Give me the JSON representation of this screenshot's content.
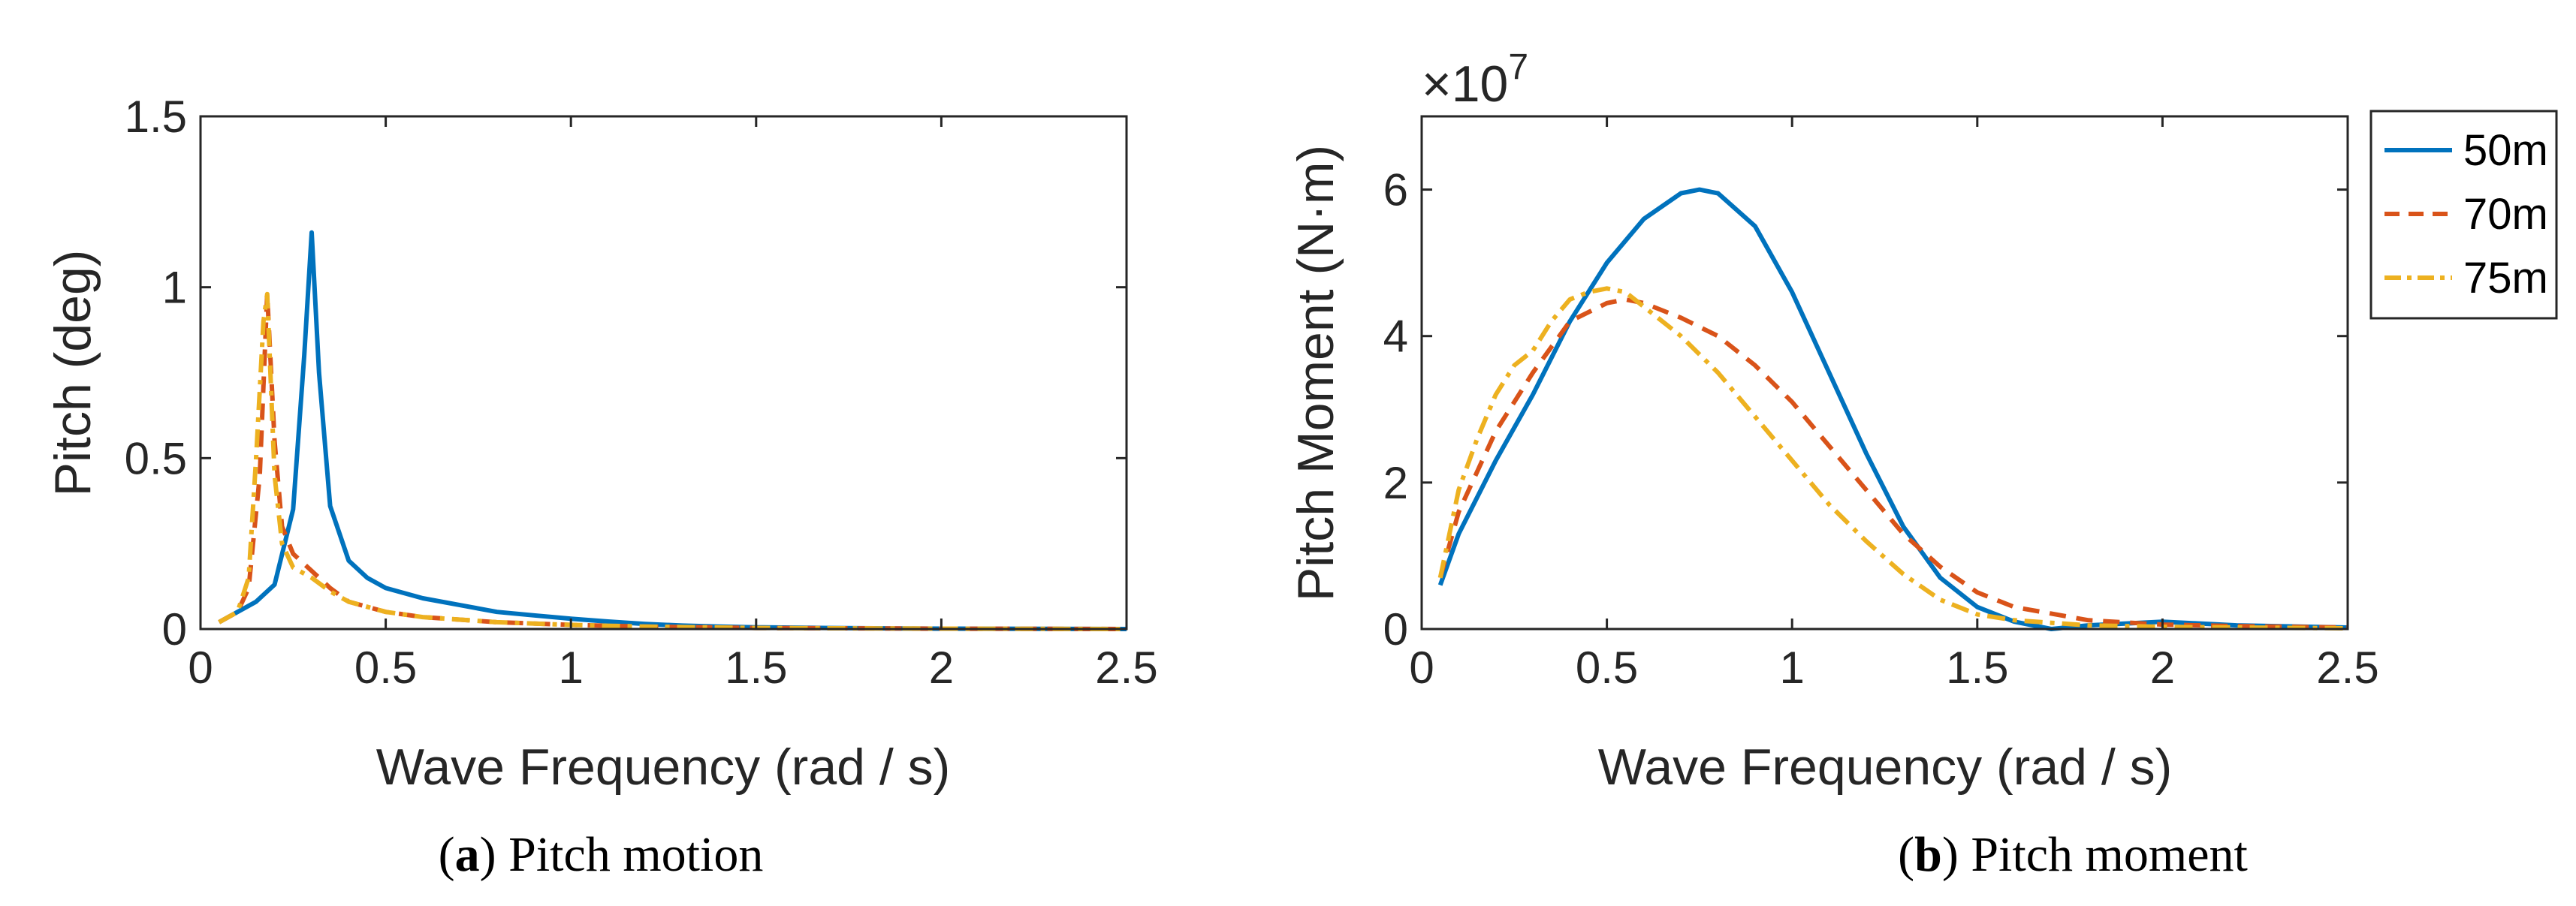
{
  "chart_data": [
    {
      "type": "line",
      "caption": {
        "letter": "a",
        "text": "Pitch motion"
      },
      "xlabel": "Wave Frequency (rad / s)",
      "ylabel": "Pitch  (deg)",
      "xlim": [
        0,
        2.5
      ],
      "ylim": [
        0,
        1.5
      ],
      "xticks": [
        "0",
        "0.5",
        "1",
        "1.5",
        "2",
        "2.5"
      ],
      "yticks": [
        "0",
        "0.5",
        "1",
        "1.5"
      ],
      "series": [
        {
          "name": "50m",
          "color": "#0072BD",
          "dash": "solid",
          "x": [
            0.05,
            0.1,
            0.15,
            0.2,
            0.25,
            0.28,
            0.3,
            0.32,
            0.35,
            0.4,
            0.45,
            0.5,
            0.6,
            0.7,
            0.8,
            0.9,
            1.0,
            1.1,
            1.2,
            1.3,
            1.4,
            1.5,
            1.7,
            2.0,
            2.5
          ],
          "y": [
            0.02,
            0.05,
            0.08,
            0.13,
            0.35,
            0.8,
            1.16,
            0.75,
            0.36,
            0.2,
            0.15,
            0.12,
            0.09,
            0.07,
            0.05,
            0.04,
            0.03,
            0.022,
            0.015,
            0.01,
            0.007,
            0.005,
            0.003,
            0.001,
            0.0
          ]
        },
        {
          "name": "70m",
          "color": "#D95319",
          "dash": "dashed",
          "x": [
            0.05,
            0.1,
            0.13,
            0.16,
            0.18,
            0.2,
            0.22,
            0.25,
            0.3,
            0.35,
            0.4,
            0.5,
            0.6,
            0.8,
            1.0,
            1.2,
            1.5,
            2.0,
            2.5
          ],
          "y": [
            0.02,
            0.05,
            0.12,
            0.45,
            0.98,
            0.55,
            0.3,
            0.22,
            0.17,
            0.12,
            0.08,
            0.05,
            0.035,
            0.02,
            0.012,
            0.007,
            0.003,
            0.001,
            0.0
          ]
        },
        {
          "name": "75m",
          "color": "#EDB120",
          "dash": "dashdot",
          "x": [
            0.05,
            0.1,
            0.13,
            0.15,
            0.17,
            0.18,
            0.2,
            0.22,
            0.25,
            0.3,
            0.35,
            0.4,
            0.5,
            0.6,
            0.8,
            1.0,
            1.2,
            1.5,
            2.0,
            2.5
          ],
          "y": [
            0.02,
            0.05,
            0.15,
            0.5,
            0.9,
            0.98,
            0.45,
            0.25,
            0.18,
            0.15,
            0.11,
            0.08,
            0.05,
            0.035,
            0.02,
            0.012,
            0.007,
            0.003,
            0.001,
            0.0
          ]
        }
      ]
    },
    {
      "type": "line",
      "caption": {
        "letter": "b",
        "text": "Pitch moment"
      },
      "xlabel": "Wave Frequency (rad / s)",
      "ylabel": "Pitch Moment (N·m)",
      "scale_label": "×10",
      "scale_exp": "7",
      "xlim": [
        0,
        2.5
      ],
      "ylim": [
        0,
        7
      ],
      "xticks": [
        "0",
        "0.5",
        "1",
        "1.5",
        "2",
        "2.5"
      ],
      "yticks": [
        "0",
        "2",
        "4",
        "6"
      ],
      "legend": {
        "position": "outside-top-right"
      },
      "series": [
        {
          "name": "50m",
          "color": "#0072BD",
          "dash": "solid",
          "x": [
            0.05,
            0.1,
            0.2,
            0.3,
            0.4,
            0.5,
            0.6,
            0.7,
            0.75,
            0.8,
            0.9,
            1.0,
            1.1,
            1.2,
            1.3,
            1.4,
            1.5,
            1.6,
            1.7,
            1.8,
            2.0,
            2.2,
            2.5
          ],
          "y": [
            0.6,
            1.3,
            2.3,
            3.2,
            4.2,
            5.0,
            5.6,
            5.95,
            6.0,
            5.95,
            5.5,
            4.6,
            3.5,
            2.4,
            1.4,
            0.7,
            0.3,
            0.1,
            0.0,
            0.05,
            0.1,
            0.05,
            0.02
          ]
        },
        {
          "name": "70m",
          "color": "#D95319",
          "dash": "dashed",
          "x": [
            0.05,
            0.1,
            0.2,
            0.3,
            0.4,
            0.5,
            0.55,
            0.6,
            0.7,
            0.8,
            0.9,
            1.0,
            1.1,
            1.2,
            1.3,
            1.4,
            1.5,
            1.6,
            1.8,
            2.0,
            2.2,
            2.5
          ],
          "y": [
            0.7,
            1.6,
            2.7,
            3.5,
            4.2,
            4.45,
            4.5,
            4.45,
            4.25,
            4.0,
            3.6,
            3.1,
            2.5,
            1.9,
            1.3,
            0.85,
            0.5,
            0.3,
            0.12,
            0.06,
            0.04,
            0.02
          ]
        },
        {
          "name": "75m",
          "color": "#EDB120",
          "dash": "dashdot",
          "x": [
            0.05,
            0.1,
            0.15,
            0.2,
            0.25,
            0.3,
            0.35,
            0.4,
            0.45,
            0.5,
            0.55,
            0.6,
            0.7,
            0.8,
            0.9,
            1.0,
            1.1,
            1.2,
            1.3,
            1.4,
            1.5,
            1.6,
            1.8,
            2.0,
            2.2,
            2.5
          ],
          "y": [
            0.7,
            1.9,
            2.6,
            3.2,
            3.6,
            3.8,
            4.2,
            4.5,
            4.6,
            4.65,
            4.6,
            4.4,
            4.0,
            3.5,
            2.9,
            2.3,
            1.7,
            1.2,
            0.75,
            0.4,
            0.2,
            0.12,
            0.05,
            0.03,
            0.02,
            0.01
          ]
        }
      ]
    }
  ]
}
